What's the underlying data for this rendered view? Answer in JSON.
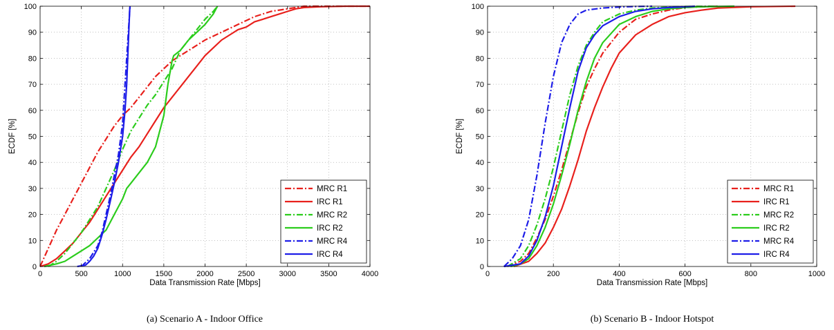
{
  "chart_data": [
    {
      "type": "line",
      "caption": "(a) Scenario A - Indoor Office",
      "xlabel": "Data Transmission Rate [Mbps]",
      "ylabel": "ECDF [%]",
      "xlim": [
        0,
        4000
      ],
      "ylim": [
        0,
        100
      ],
      "xticks": [
        0,
        500,
        1000,
        1500,
        2000,
        2500,
        3000,
        3500,
        4000
      ],
      "yticks": [
        0,
        10,
        20,
        30,
        40,
        50,
        60,
        70,
        80,
        90,
        100
      ],
      "grid": true,
      "legend_position": "bottom-right",
      "series": [
        {
          "name": "MRC R1",
          "color": "#e8201c",
          "dash": "dashdot",
          "x": [
            0,
            100,
            200,
            300,
            400,
            500,
            600,
            700,
            800,
            900,
            1000,
            1100,
            1200,
            1300,
            1400,
            1500,
            1600,
            1700,
            1800,
            1900,
            2000,
            2200,
            2400,
            2600,
            2800,
            3000,
            3200,
            3500,
            4000
          ],
          "y": [
            0,
            7,
            14,
            20,
            26,
            32,
            38,
            44,
            49,
            54,
            58,
            61,
            65,
            69,
            73,
            76,
            79,
            81,
            83,
            85,
            87,
            90,
            93,
            96,
            98,
            99,
            100,
            100,
            100
          ]
        },
        {
          "name": "IRC R1",
          "color": "#e8201c",
          "dash": "solid",
          "x": [
            0,
            100,
            200,
            300,
            400,
            500,
            600,
            700,
            800,
            900,
            1000,
            1100,
            1200,
            1300,
            1400,
            1500,
            1600,
            1700,
            1800,
            1900,
            2000,
            2100,
            2200,
            2300,
            2400,
            2500,
            2600,
            2700,
            2800,
            2900,
            3000,
            3100,
            3200,
            3400,
            3700,
            4000
          ],
          "y": [
            0,
            1,
            3,
            6,
            9,
            13,
            17,
            22,
            27,
            32,
            37,
            42,
            46,
            51,
            56,
            61,
            65,
            69,
            73,
            77,
            81,
            84,
            87,
            89,
            91,
            92,
            94,
            95,
            96,
            97,
            98,
            99,
            99.5,
            99.8,
            100,
            100
          ]
        },
        {
          "name": "MRC R2",
          "color": "#2bcc1c",
          "dash": "dashdot",
          "x": [
            100,
            200,
            300,
            400,
            500,
            600,
            700,
            800,
            900,
            1000,
            1100,
            1200,
            1300,
            1400,
            1500,
            1600,
            1700,
            1800,
            1900,
            2000,
            2100,
            2150
          ],
          "y": [
            0,
            2,
            5,
            9,
            13,
            18,
            23,
            30,
            37,
            45,
            52,
            57,
            62,
            66,
            71,
            76,
            83,
            87,
            91,
            95,
            98,
            100
          ]
        },
        {
          "name": "IRC R2",
          "color": "#2bcc1c",
          "dash": "solid",
          "x": [
            50,
            200,
            300,
            400,
            500,
            600,
            700,
            800,
            900,
            1000,
            1050,
            1100,
            1200,
            1300,
            1400,
            1500,
            1550,
            1600,
            1620,
            1700,
            1800,
            1900,
            2000,
            2100,
            2150
          ],
          "y": [
            0,
            1,
            2,
            4,
            6,
            8,
            11,
            14,
            20,
            26,
            30,
            32,
            36,
            40,
            46,
            58,
            70,
            79,
            81,
            83,
            87,
            90,
            93,
            97,
            100
          ]
        },
        {
          "name": "MRC R4",
          "color": "#1c1ce8",
          "dash": "dashdot",
          "x": [
            500,
            600,
            700,
            750,
            800,
            850,
            900,
            950,
            1000,
            1020,
            1040,
            1060,
            1080,
            1090
          ],
          "y": [
            0,
            3,
            8,
            13,
            20,
            27,
            35,
            43,
            55,
            65,
            75,
            85,
            95,
            100
          ]
        },
        {
          "name": "IRC R4",
          "color": "#1c1ce8",
          "dash": "solid",
          "x": [
            450,
            550,
            600,
            650,
            700,
            750,
            800,
            850,
            900,
            950,
            1000,
            1030,
            1050,
            1060,
            1070,
            1080,
            1085,
            1090
          ],
          "y": [
            0,
            0.5,
            2,
            4,
            7,
            12,
            18,
            25,
            32,
            40,
            50,
            60,
            70,
            78,
            86,
            94,
            98,
            100
          ]
        }
      ]
    },
    {
      "type": "line",
      "caption": "(b) Scenario B - Indoor Hotspot",
      "xlabel": "Data Transmission Rate [Mbps]",
      "ylabel": "ECDF [%]",
      "xlim": [
        0,
        1000
      ],
      "ylim": [
        0,
        100
      ],
      "xticks": [
        0,
        200,
        400,
        600,
        800,
        1000
      ],
      "yticks": [
        0,
        10,
        20,
        30,
        40,
        50,
        60,
        70,
        80,
        90,
        100
      ],
      "grid": true,
      "legend_position": "bottom-right",
      "series": [
        {
          "name": "MRC R1",
          "color": "#e8201c",
          "dash": "dashdot",
          "x": [
            60,
            100,
            125,
            150,
            175,
            200,
            225,
            250,
            275,
            300,
            325,
            350,
            400,
            450,
            500,
            550,
            600,
            700
          ],
          "y": [
            0,
            2,
            5,
            11,
            18,
            27,
            37,
            48,
            59,
            69,
            76,
            82,
            90,
            95,
            97,
            98.5,
            99.5,
            100
          ]
        },
        {
          "name": "IRC R1",
          "color": "#e8201c",
          "dash": "solid",
          "x": [
            80,
            125,
            150,
            175,
            200,
            225,
            250,
            275,
            300,
            325,
            350,
            375,
            400,
            450,
            500,
            550,
            600,
            650,
            700,
            800,
            935
          ],
          "y": [
            0,
            2,
            5,
            9,
            15,
            22,
            31,
            41,
            52,
            61,
            69,
            76,
            82,
            89,
            93,
            96,
            97.5,
            98.5,
            99.3,
            99.8,
            100
          ]
        },
        {
          "name": "MRC R2",
          "color": "#2bcc1c",
          "dash": "dashdot",
          "x": [
            60,
            100,
            125,
            150,
            175,
            200,
            225,
            250,
            275,
            300,
            325,
            350,
            400,
            450,
            500,
            550,
            600,
            700
          ],
          "y": [
            0,
            3,
            8,
            16,
            26,
            38,
            52,
            66,
            77,
            85,
            90,
            94,
            97,
            98.5,
            99.3,
            99.7,
            99.9,
            100
          ]
        },
        {
          "name": "IRC R2",
          "color": "#2bcc1c",
          "dash": "solid",
          "x": [
            70,
            100,
            125,
            150,
            175,
            200,
            225,
            250,
            275,
            300,
            325,
            350,
            400,
            450,
            500,
            550,
            600,
            650,
            750
          ],
          "y": [
            0,
            1,
            3,
            8,
            15,
            24,
            35,
            47,
            60,
            71,
            80,
            86,
            93,
            96,
            98,
            99,
            99.5,
            99.8,
            100
          ]
        },
        {
          "name": "MRC R4",
          "color": "#1c1ce8",
          "dash": "dashdot",
          "x": [
            50,
            75,
            100,
            125,
            150,
            175,
            200,
            225,
            250,
            275,
            300,
            350,
            400,
            450,
            500
          ],
          "y": [
            0,
            3,
            8,
            18,
            35,
            55,
            73,
            86,
            93,
            97,
            98.5,
            99.3,
            99.7,
            99.9,
            100
          ]
        },
        {
          "name": "IRC R4",
          "color": "#1c1ce8",
          "dash": "solid",
          "x": [
            50,
            100,
            125,
            150,
            175,
            200,
            225,
            250,
            275,
            300,
            325,
            350,
            400,
            450,
            500,
            550,
            600,
            630
          ],
          "y": [
            0,
            1,
            4,
            10,
            19,
            31,
            46,
            61,
            75,
            84,
            89,
            92.5,
            96,
            98,
            99,
            99.5,
            99.8,
            100
          ]
        }
      ]
    }
  ]
}
